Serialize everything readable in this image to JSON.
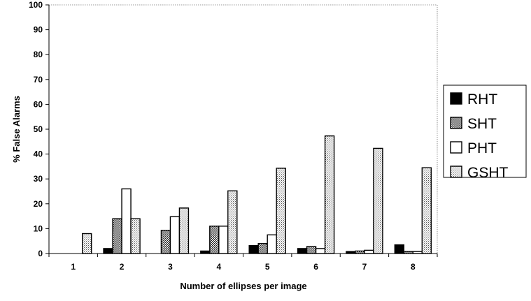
{
  "chart_data": {
    "type": "bar",
    "title": "",
    "xlabel": "Number of ellipses per image",
    "ylabel": "% False Alarms",
    "ylim": [
      0,
      100
    ],
    "yticks": [
      0,
      10,
      20,
      30,
      40,
      50,
      60,
      70,
      80,
      90,
      100
    ],
    "categories": [
      "1",
      "2",
      "3",
      "4",
      "5",
      "6",
      "7",
      "8"
    ],
    "grid": false,
    "legend_position": "right",
    "series": [
      {
        "name": "RHT",
        "pattern": "solid-black",
        "values": [
          0,
          2,
          0,
          1,
          3.2,
          2,
          0.8,
          3.5
        ]
      },
      {
        "name": "SHT",
        "pattern": "dense-checker",
        "values": [
          0,
          14,
          9.3,
          11,
          4,
          2.8,
          1,
          0.8
        ]
      },
      {
        "name": "PHT",
        "pattern": "white",
        "values": [
          0,
          26,
          14.8,
          11,
          7.5,
          2,
          1.3,
          0.8
        ]
      },
      {
        "name": "GSHT",
        "pattern": "light-dotted",
        "values": [
          8,
          14,
          18.3,
          25.2,
          34.3,
          47.3,
          42.3,
          34.5
        ]
      }
    ]
  }
}
